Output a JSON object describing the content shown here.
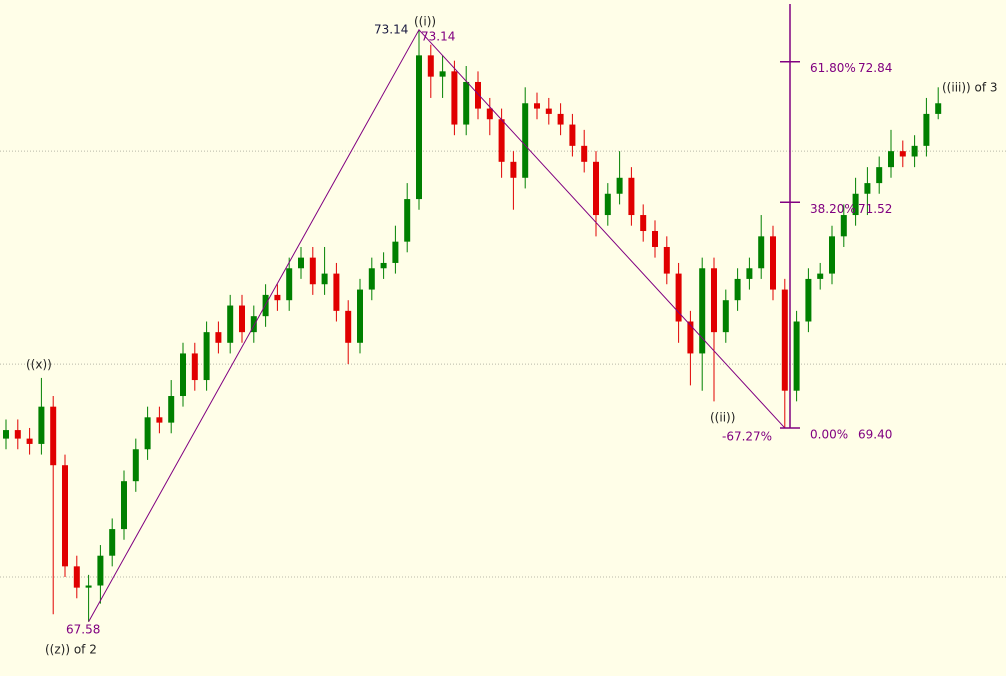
{
  "chart_data": {
    "type": "candlestick",
    "open": [
      69.3,
      69.38,
      69.3,
      69.25,
      69.6,
      69.05,
      68.1,
      67.9,
      67.92,
      68.2,
      68.45,
      68.9,
      69.2,
      69.5,
      69.45,
      69.7,
      70.1,
      69.85,
      70.3,
      70.2,
      70.55,
      70.3,
      70.45,
      70.65,
      70.6,
      70.9,
      71.0,
      70.75,
      70.85,
      70.5,
      70.2,
      70.7,
      70.9,
      70.95,
      71.15,
      71.55,
      72.9,
      72.7,
      72.75,
      72.25,
      72.65,
      72.4,
      72.3,
      71.9,
      71.75,
      72.45,
      72.4,
      72.35,
      72.25,
      72.05,
      71.9,
      71.4,
      71.6,
      71.75,
      71.4,
      71.25,
      71.1,
      70.85,
      70.4,
      70.1,
      70.9,
      70.3,
      70.6,
      70.8,
      70.9,
      71.2,
      70.7,
      69.75,
      70.4,
      70.8,
      70.85,
      71.2,
      71.4,
      71.6,
      71.7,
      71.85,
      72.0,
      71.95,
      72.05,
      72.35
    ],
    "high": [
      69.48,
      69.48,
      69.4,
      69.87,
      69.7,
      69.15,
      68.2,
      68.02,
      68.3,
      68.55,
      69.0,
      69.3,
      69.6,
      69.6,
      69.85,
      70.2,
      70.2,
      70.4,
      70.4,
      70.65,
      70.65,
      70.55,
      70.75,
      70.75,
      71.0,
      71.1,
      71.1,
      71.1,
      70.95,
      70.6,
      70.8,
      71.0,
      71.05,
      71.3,
      71.7,
      73.14,
      73.0,
      72.9,
      72.85,
      72.8,
      72.75,
      72.5,
      72.4,
      72.0,
      72.6,
      72.55,
      72.5,
      72.45,
      72.35,
      72.2,
      72.0,
      71.7,
      72.0,
      71.85,
      71.5,
      71.35,
      71.2,
      70.95,
      70.5,
      71.0,
      71.0,
      70.7,
      70.9,
      71.0,
      71.4,
      71.3,
      70.8,
      70.5,
      70.9,
      70.95,
      71.3,
      71.5,
      71.75,
      71.85,
      71.95,
      72.2,
      72.1,
      72.15,
      72.5,
      72.6
    ],
    "low": [
      69.2,
      69.2,
      69.15,
      69.15,
      67.65,
      68.0,
      67.8,
      67.58,
      67.75,
      68.1,
      68.35,
      68.8,
      69.1,
      69.35,
      69.35,
      69.6,
      69.75,
      69.75,
      70.1,
      70.1,
      70.2,
      70.2,
      70.35,
      70.5,
      70.5,
      70.8,
      70.65,
      70.65,
      70.4,
      70.0,
      70.1,
      70.6,
      70.8,
      70.85,
      71.05,
      71.45,
      72.5,
      72.5,
      72.15,
      72.15,
      72.3,
      72.15,
      71.75,
      71.45,
      71.65,
      72.3,
      72.25,
      72.15,
      71.95,
      71.8,
      71.2,
      71.3,
      71.5,
      71.3,
      71.15,
      71.0,
      70.75,
      70.2,
      69.8,
      69.75,
      69.65,
      70.2,
      70.5,
      70.7,
      70.8,
      70.6,
      69.4,
      69.65,
      70.3,
      70.7,
      70.75,
      71.1,
      71.3,
      71.4,
      71.6,
      71.75,
      71.85,
      71.85,
      71.95,
      72.3
    ],
    "close": [
      69.38,
      69.3,
      69.25,
      69.6,
      69.05,
      68.1,
      67.9,
      67.92,
      68.2,
      68.45,
      68.9,
      69.2,
      69.5,
      69.45,
      69.7,
      70.1,
      69.85,
      70.3,
      70.2,
      70.55,
      70.3,
      70.45,
      70.65,
      70.6,
      70.9,
      71.0,
      70.75,
      70.85,
      70.5,
      70.2,
      70.7,
      70.9,
      70.95,
      71.15,
      71.55,
      72.9,
      72.7,
      72.75,
      72.25,
      72.65,
      72.4,
      72.3,
      71.9,
      71.75,
      72.45,
      72.4,
      72.35,
      72.25,
      72.05,
      71.9,
      71.4,
      71.6,
      71.75,
      71.4,
      71.25,
      71.1,
      70.85,
      70.4,
      70.1,
      70.9,
      70.3,
      70.6,
      70.8,
      70.9,
      71.2,
      70.7,
      69.75,
      70.4,
      70.8,
      70.85,
      71.2,
      71.4,
      71.6,
      71.7,
      71.85,
      72.0,
      71.95,
      72.05,
      72.35,
      72.45
    ],
    "up_color": "#008000",
    "down_color": "#e00000",
    "line_color": "#800080",
    "ylim": [
      67.07,
      73.42
    ],
    "yticks": [
      68,
      70,
      72
    ],
    "grid": true,
    "annotations": [
      "((x))",
      "((i))",
      "((ii))",
      "-67.27%",
      "((z)) of 2",
      "((iii)) of 3"
    ],
    "fib_levels": [
      {
        "ratio": "61.80%",
        "price": 72.84
      },
      {
        "ratio": "38.20%",
        "price": 71.52
      },
      {
        "ratio": "0.00%",
        "price": {
          "value": 69.4,
          "label": "69.40"
        }
      }
    ]
  }
}
